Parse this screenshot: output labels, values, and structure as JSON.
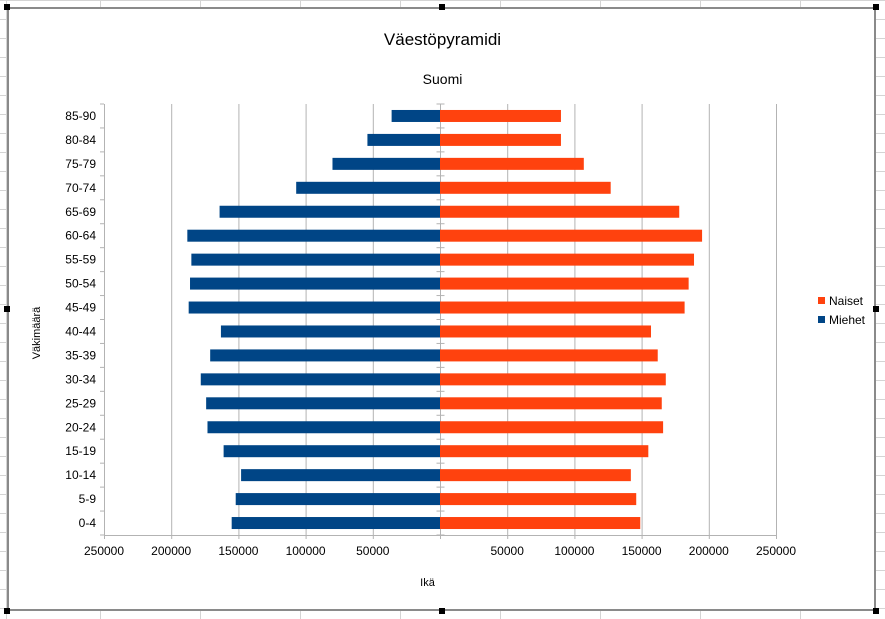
{
  "chart_data": {
    "type": "bar",
    "orientation": "horizontal",
    "title": "Väestöpyramidi",
    "subtitle": "Suomi",
    "xlabel": "Ikä",
    "ylabel": "Väkimäärä",
    "categories": [
      "0-4",
      "5-9",
      "10-14",
      "15-19",
      "20-24",
      "25-29",
      "30-34",
      "35-39",
      "40-44",
      "45-49",
      "50-54",
      "55-59",
      "60-64",
      "65-69",
      "70-74",
      "75-79",
      "80-84",
      "85-90"
    ],
    "series": [
      {
        "name": "Naiset",
        "color": "#ff420e",
        "values": [
          149000,
          146000,
          142000,
          155000,
          166000,
          165000,
          168000,
          162000,
          157000,
          182000,
          185000,
          189000,
          195000,
          178000,
          127000,
          107000,
          90000,
          90000
        ]
      },
      {
        "name": "Miehet",
        "color": "#004586",
        "values": [
          155000,
          152000,
          148000,
          161000,
          173000,
          174000,
          178000,
          171000,
          163000,
          187000,
          186000,
          185000,
          188000,
          164000,
          107000,
          80000,
          54000,
          36000
        ]
      }
    ],
    "xlim": [
      -250000,
      250000
    ],
    "x_ticks": [
      -250000,
      -200000,
      -150000,
      -100000,
      -50000,
      0,
      50000,
      100000,
      150000,
      200000,
      250000
    ],
    "x_tick_labels": [
      "250000",
      "200000",
      "150000",
      "100000",
      "50000",
      "",
      "50000",
      "100000",
      "150000",
      "200000",
      "250000"
    ],
    "grid": true,
    "legend_position": "right"
  }
}
